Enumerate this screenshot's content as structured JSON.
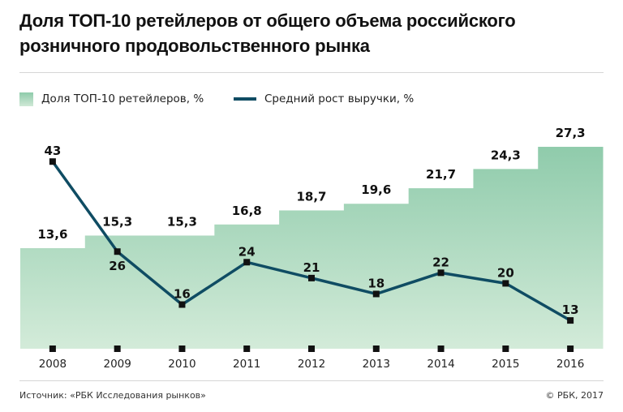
{
  "title_line1": "Доля ТОП-10 ретейлеров от общего объема российского",
  "title_line2": "розничного продовольственного рынка",
  "legend": {
    "bars_label": "Доля ТОП-10 ретейлеров, %",
    "line_label": "Средний рост выручки, %"
  },
  "footer": {
    "source": "Источник: «РБК Исследования рынков»",
    "copyright": "© РБК, 2017"
  },
  "colors": {
    "bar_top": "#8fcbab",
    "bar_bottom": "#d3ebd9",
    "line": "#0f4c63",
    "marker": "#111111"
  },
  "chart_data": {
    "type": "bar+line",
    "title": "Доля ТОП-10 ретейлеров от общего объема российского розничного продовольственного рынка",
    "categories": [
      "2008",
      "2009",
      "2010",
      "2011",
      "2012",
      "2013",
      "2014",
      "2015",
      "2016"
    ],
    "series": [
      {
        "name": "Доля ТОП-10 ретейлеров, %",
        "type": "bar",
        "values": [
          13.6,
          15.3,
          15.3,
          16.8,
          18.7,
          19.6,
          21.7,
          24.3,
          27.3
        ],
        "labels": [
          "13,6",
          "15,3",
          "15,3",
          "16,8",
          "18,7",
          "19,6",
          "21,7",
          "24,3",
          "27,3"
        ]
      },
      {
        "name": "Средний рост выручки, %",
        "type": "line",
        "values": [
          43,
          26,
          16,
          24,
          21,
          18,
          22,
          20,
          13
        ],
        "labels": [
          "43",
          "26",
          "16",
          "24",
          "21",
          "18",
          "22",
          "20",
          "13"
        ]
      }
    ],
    "xlabel": "",
    "ylabel": "",
    "grid": false,
    "legend_position": "top-left"
  }
}
